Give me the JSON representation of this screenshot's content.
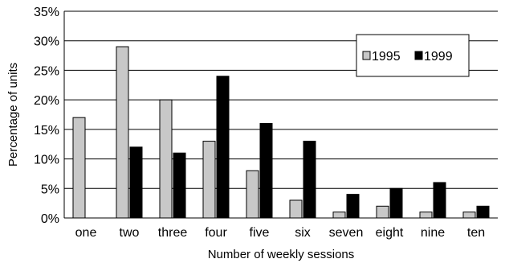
{
  "chart_data": {
    "type": "bar",
    "title": "",
    "xlabel": "Number of weekly sessions",
    "ylabel": "Percentage of units",
    "categories": [
      "one",
      "two",
      "three",
      "four",
      "five",
      "six",
      "seven",
      "eight",
      "nine",
      "ten"
    ],
    "series": [
      {
        "name": "1995",
        "color": "#c8c8c8",
        "values": [
          17,
          29,
          20,
          13,
          8,
          3,
          1,
          2,
          1,
          1
        ]
      },
      {
        "name": "1999",
        "color": "#000000",
        "values": [
          0,
          12,
          11,
          24,
          16,
          13,
          4,
          5,
          6,
          2
        ]
      }
    ],
    "ylim": [
      0,
      35
    ],
    "yticks": [
      0,
      5,
      10,
      15,
      20,
      25,
      30,
      35
    ],
    "ytick_labels": [
      "0%",
      "5%",
      "10%",
      "15%",
      "20%",
      "25%",
      "30%",
      "35%"
    ],
    "grid": true,
    "legend_position": "top-right"
  }
}
